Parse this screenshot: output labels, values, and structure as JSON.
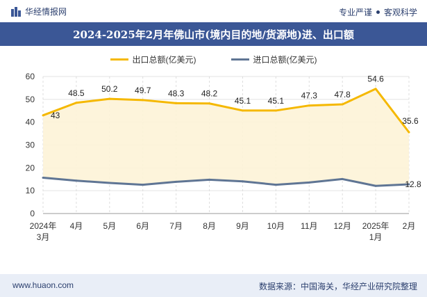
{
  "header": {
    "brand": "华经情报网",
    "tagline_left": "专业严谨",
    "tagline_right": "客观科学"
  },
  "footer": {
    "site": "www.huaon.com",
    "source": "数据来源：中国海关，华经产业研究院整理"
  },
  "colors": {
    "export": "#f5b800",
    "import": "#5f7594",
    "fill": "#fdf3d7",
    "title_bg": "#3b5796"
  },
  "chart_data": {
    "type": "line",
    "title": "2024-2025年2月年佛山市(境内目的地/货源地)进、出口额",
    "categories": [
      "2024年3月",
      "4月",
      "5月",
      "6月",
      "7月",
      "8月",
      "9月",
      "10月",
      "11月",
      "12月",
      "2025年1月",
      "2月"
    ],
    "ylim": [
      0,
      60
    ],
    "yticks": [
      0,
      10,
      20,
      30,
      40,
      50,
      60
    ],
    "series": [
      {
        "name": "出口总额(亿美元)",
        "values": [
          43,
          48.5,
          50.2,
          49.7,
          48.3,
          48.2,
          45.1,
          45.1,
          47.3,
          47.8,
          54.6,
          35.6
        ],
        "labels": [
          "43",
          "48.5",
          "50.2",
          "49.7",
          "48.3",
          "48.2",
          "45.1",
          "45.1",
          "47.3",
          "47.8",
          "54.6",
          "35.6"
        ]
      },
      {
        "name": "进口总额(亿美元)",
        "values": [
          15.7,
          14.4,
          13.4,
          12.6,
          13.9,
          14.8,
          14.1,
          12.6,
          13.6,
          15.1,
          12.1,
          12.8
        ],
        "labels": [
          "",
          "",
          "",
          "",
          "",
          "",
          "",
          "",
          "",
          "",
          "",
          "12.8"
        ]
      }
    ]
  }
}
